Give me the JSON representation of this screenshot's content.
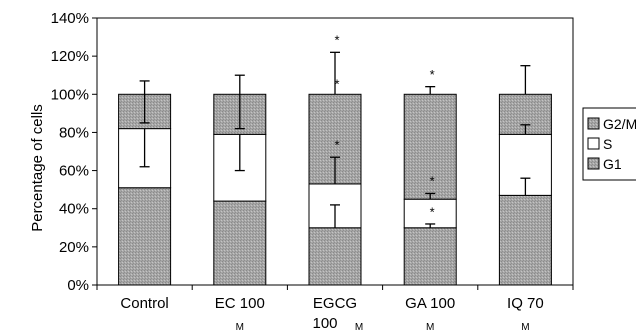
{
  "chart_data": {
    "type": "bar",
    "stacked": true,
    "title": "",
    "xlabel": "",
    "ylabel": "Percentage of cells",
    "ylim": [
      0,
      140
    ],
    "yticks": [
      "0%",
      "20%",
      "40%",
      "60%",
      "80%",
      "100%",
      "120%",
      "140%"
    ],
    "categories": [
      {
        "label": "Control",
        "unit": ""
      },
      {
        "label": "EC 100",
        "unit": "M"
      },
      {
        "label": "EGCG",
        "label2": "100",
        "unit": "M"
      },
      {
        "label": "GA 100",
        "unit": "M"
      },
      {
        "label": "IQ 70",
        "unit": "M"
      }
    ],
    "series": [
      {
        "name": "G1",
        "values": [
          51,
          44,
          30,
          30,
          47
        ],
        "error_top": [
          null,
          null,
          42,
          32,
          56
        ],
        "stars": [
          false,
          false,
          false,
          true,
          false
        ],
        "color": "#a8a8a8",
        "pattern": "stipple"
      },
      {
        "name": "S",
        "values": [
          31,
          35,
          23,
          15,
          32
        ],
        "error_top": [
          62,
          60,
          67,
          48,
          84
        ],
        "stars": [
          false,
          false,
          true,
          true,
          false
        ],
        "color": "#ffffff"
      },
      {
        "name": "G2/M",
        "values": [
          18,
          21,
          47,
          55,
          21
        ],
        "error_top": [
          85,
          82,
          null,
          null,
          null
        ],
        "stars": [
          false,
          false,
          true,
          false,
          false
        ],
        "color": "#a8a8a8",
        "pattern": "stipple"
      }
    ],
    "total_error_top": [
      107,
      110,
      122,
      104,
      115
    ],
    "total_stars": [
      false,
      false,
      true,
      true,
      false
    ],
    "legend_position": "right",
    "grid": false
  }
}
